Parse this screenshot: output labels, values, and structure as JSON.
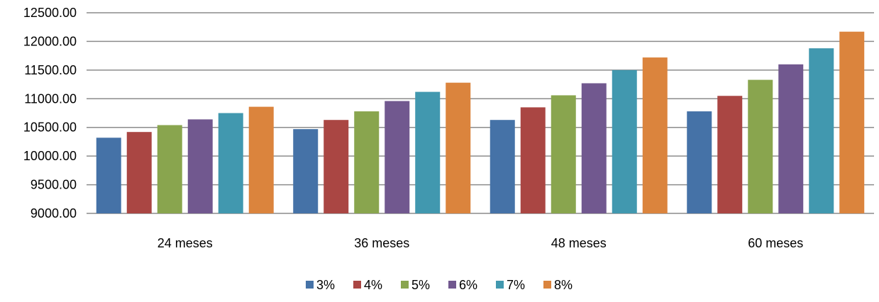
{
  "chart_data": {
    "type": "bar",
    "title": "",
    "xlabel": "",
    "ylabel": "",
    "categories": [
      "24 meses",
      "36 meses",
      "48 meses",
      "60 meses"
    ],
    "series": [
      {
        "name": "3%",
        "color": "#4572a7",
        "values": [
          10320,
          10470,
          10630,
          10780
        ]
      },
      {
        "name": "4%",
        "color": "#aa4643",
        "values": [
          10420,
          10630,
          10850,
          11050
        ]
      },
      {
        "name": "5%",
        "color": "#89a54e",
        "values": [
          10540,
          10780,
          11060,
          11330
        ]
      },
      {
        "name": "6%",
        "color": "#71588f",
        "values": [
          10640,
          10960,
          11270,
          11600
        ]
      },
      {
        "name": "7%",
        "color": "#4198af",
        "values": [
          10750,
          11120,
          11500,
          11880
        ]
      },
      {
        "name": "8%",
        "color": "#db843d",
        "values": [
          10860,
          11280,
          11720,
          12170
        ]
      }
    ],
    "ylim": [
      9000,
      12500
    ],
    "yticks": [
      "9000.00",
      "9500.00",
      "10000.00",
      "10500.00",
      "11000.00",
      "11500.00",
      "12000.00",
      "12500.00"
    ],
    "grid": true,
    "legend_position": "bottom"
  }
}
